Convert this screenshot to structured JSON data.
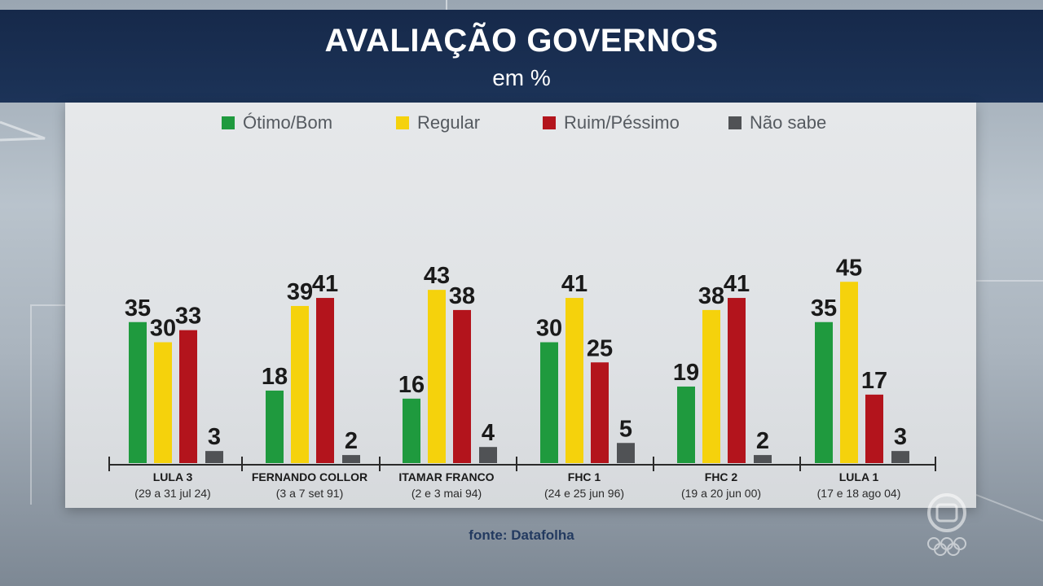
{
  "header": {
    "title": "AVALIAÇÃO GOVERNOS",
    "subtitle": "em %"
  },
  "source": "fonte: Datafolha",
  "colors": {
    "otimo_bom": "#1f9a3e",
    "regular": "#f5d20c",
    "ruim_pessimo": "#b3141c",
    "nao_sabe": "#505255",
    "header_bg": "#1a2f52",
    "panel_bg": "#e3e5e7"
  },
  "legend": [
    {
      "label": "Ótimo/Bom",
      "color": "#1f9a3e"
    },
    {
      "label": "Regular",
      "color": "#f5d20c"
    },
    {
      "label": "Ruim/Péssimo",
      "color": "#b3141c"
    },
    {
      "label": "Não sabe",
      "color": "#505255"
    }
  ],
  "chart_data": {
    "type": "bar",
    "title": "AVALIAÇÃO GOVERNOS",
    "subtitle": "em %",
    "categories": [
      {
        "name": "LULA 3",
        "period": "(29 a 31 jul 24)"
      },
      {
        "name": "FERNANDO COLLOR",
        "period": "(3 a 7 set 91)"
      },
      {
        "name": "ITAMAR FRANCO",
        "period": "(2 e 3 mai 94)"
      },
      {
        "name": "FHC 1",
        "period": "(24 e 25 jun 96)"
      },
      {
        "name": "FHC 2",
        "period": "(19 a 20 jun 00)"
      },
      {
        "name": "LULA 1",
        "period": "(17 e 18 ago 04)"
      }
    ],
    "series": [
      {
        "name": "Ótimo/Bom",
        "color": "#1f9a3e",
        "values": [
          35,
          18,
          16,
          30,
          19,
          35
        ]
      },
      {
        "name": "Regular",
        "color": "#f5d20c",
        "values": [
          30,
          39,
          43,
          41,
          38,
          45
        ]
      },
      {
        "name": "Ruim/Péssimo",
        "color": "#b3141c",
        "values": [
          33,
          41,
          38,
          25,
          41,
          17
        ]
      },
      {
        "name": "Não sabe",
        "color": "#505255",
        "values": [
          3,
          2,
          4,
          5,
          2,
          3
        ]
      }
    ],
    "ylim": [
      0,
      50
    ],
    "legend_position": "top",
    "grid": false,
    "source": "fonte: Datafolha"
  }
}
